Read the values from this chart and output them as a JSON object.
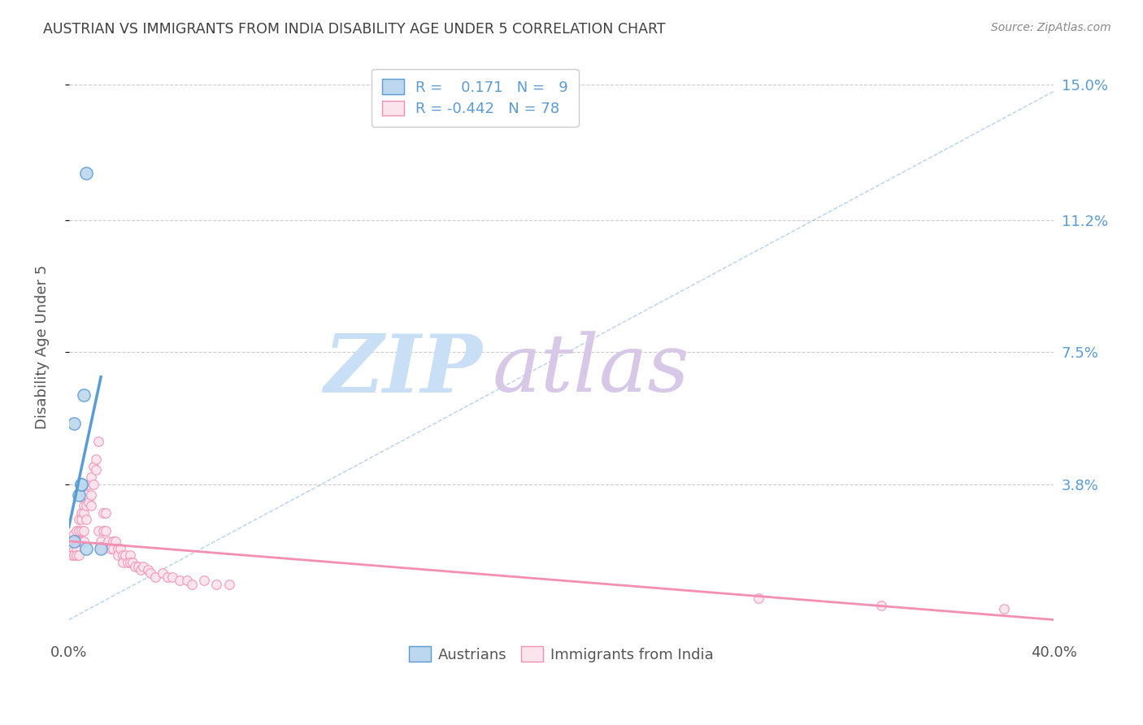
{
  "title": "AUSTRIAN VS IMMIGRANTS FROM INDIA DISABILITY AGE UNDER 5 CORRELATION CHART",
  "source": "Source: ZipAtlas.com",
  "ylabel": "Disability Age Under 5",
  "ytick_labels": [
    "15.0%",
    "11.2%",
    "7.5%",
    "3.8%"
  ],
  "ytick_values": [
    0.15,
    0.112,
    0.075,
    0.038
  ],
  "xlim": [
    0.0,
    0.4
  ],
  "ylim": [
    -0.005,
    0.158
  ],
  "background_color": "#ffffff",
  "watermark_zip": "ZIP",
  "watermark_atlas": "atlas",
  "watermark_color_zip": "#c8dff5",
  "watermark_color_atlas": "#d8c8e8",
  "blue_color": "#5b9bd5",
  "blue_fill": "#bdd7ee",
  "pink_color": "#f48fb1",
  "pink_fill": "#fce4ec",
  "legend_blue_r": "0.171",
  "legend_blue_n": "9",
  "legend_pink_r": "-0.442",
  "legend_pink_n": "78",
  "grid_color": "#cccccc",
  "title_color": "#404040",
  "right_tick_color": "#5b9bd5",
  "austrians_x": [
    0.002,
    0.002,
    0.004,
    0.005,
    0.005,
    0.006,
    0.007,
    0.007,
    0.013
  ],
  "austrians_y": [
    0.022,
    0.055,
    0.035,
    0.038,
    0.038,
    0.063,
    0.125,
    0.02,
    0.02
  ],
  "india_x": [
    0.0,
    0.001,
    0.001,
    0.001,
    0.002,
    0.002,
    0.002,
    0.002,
    0.003,
    0.003,
    0.003,
    0.003,
    0.004,
    0.004,
    0.004,
    0.004,
    0.005,
    0.005,
    0.005,
    0.005,
    0.006,
    0.006,
    0.006,
    0.006,
    0.007,
    0.007,
    0.007,
    0.008,
    0.008,
    0.009,
    0.009,
    0.009,
    0.01,
    0.01,
    0.011,
    0.011,
    0.012,
    0.012,
    0.013,
    0.013,
    0.014,
    0.014,
    0.015,
    0.015,
    0.016,
    0.017,
    0.018,
    0.018,
    0.019,
    0.02,
    0.02,
    0.021,
    0.022,
    0.022,
    0.023,
    0.024,
    0.025,
    0.025,
    0.026,
    0.027,
    0.028,
    0.029,
    0.03,
    0.032,
    0.033,
    0.035,
    0.038,
    0.04,
    0.042,
    0.045,
    0.048,
    0.05,
    0.055,
    0.06,
    0.065,
    0.28,
    0.33,
    0.38
  ],
  "india_y": [
    0.022,
    0.022,
    0.02,
    0.018,
    0.024,
    0.022,
    0.02,
    0.018,
    0.025,
    0.022,
    0.02,
    0.018,
    0.028,
    0.025,
    0.022,
    0.018,
    0.03,
    0.028,
    0.025,
    0.022,
    0.032,
    0.03,
    0.025,
    0.022,
    0.035,
    0.032,
    0.028,
    0.038,
    0.033,
    0.04,
    0.035,
    0.032,
    0.043,
    0.038,
    0.045,
    0.042,
    0.05,
    0.025,
    0.022,
    0.02,
    0.03,
    0.025,
    0.03,
    0.025,
    0.022,
    0.02,
    0.022,
    0.02,
    0.022,
    0.02,
    0.018,
    0.02,
    0.018,
    0.016,
    0.018,
    0.016,
    0.018,
    0.016,
    0.016,
    0.015,
    0.015,
    0.014,
    0.015,
    0.014,
    0.013,
    0.012,
    0.013,
    0.012,
    0.012,
    0.011,
    0.011,
    0.01,
    0.011,
    0.01,
    0.01,
    0.006,
    0.004,
    0.003
  ],
  "dashed_line_x": [
    0.0,
    0.4
  ],
  "dashed_line_y": [
    0.0,
    0.148
  ],
  "blue_trend_x": [
    0.0,
    0.013
  ],
  "blue_trend_y": [
    0.026,
    0.068
  ],
  "pink_trend_x": [
    0.0,
    0.4
  ],
  "pink_trend_y": [
    0.022,
    0.0
  ]
}
